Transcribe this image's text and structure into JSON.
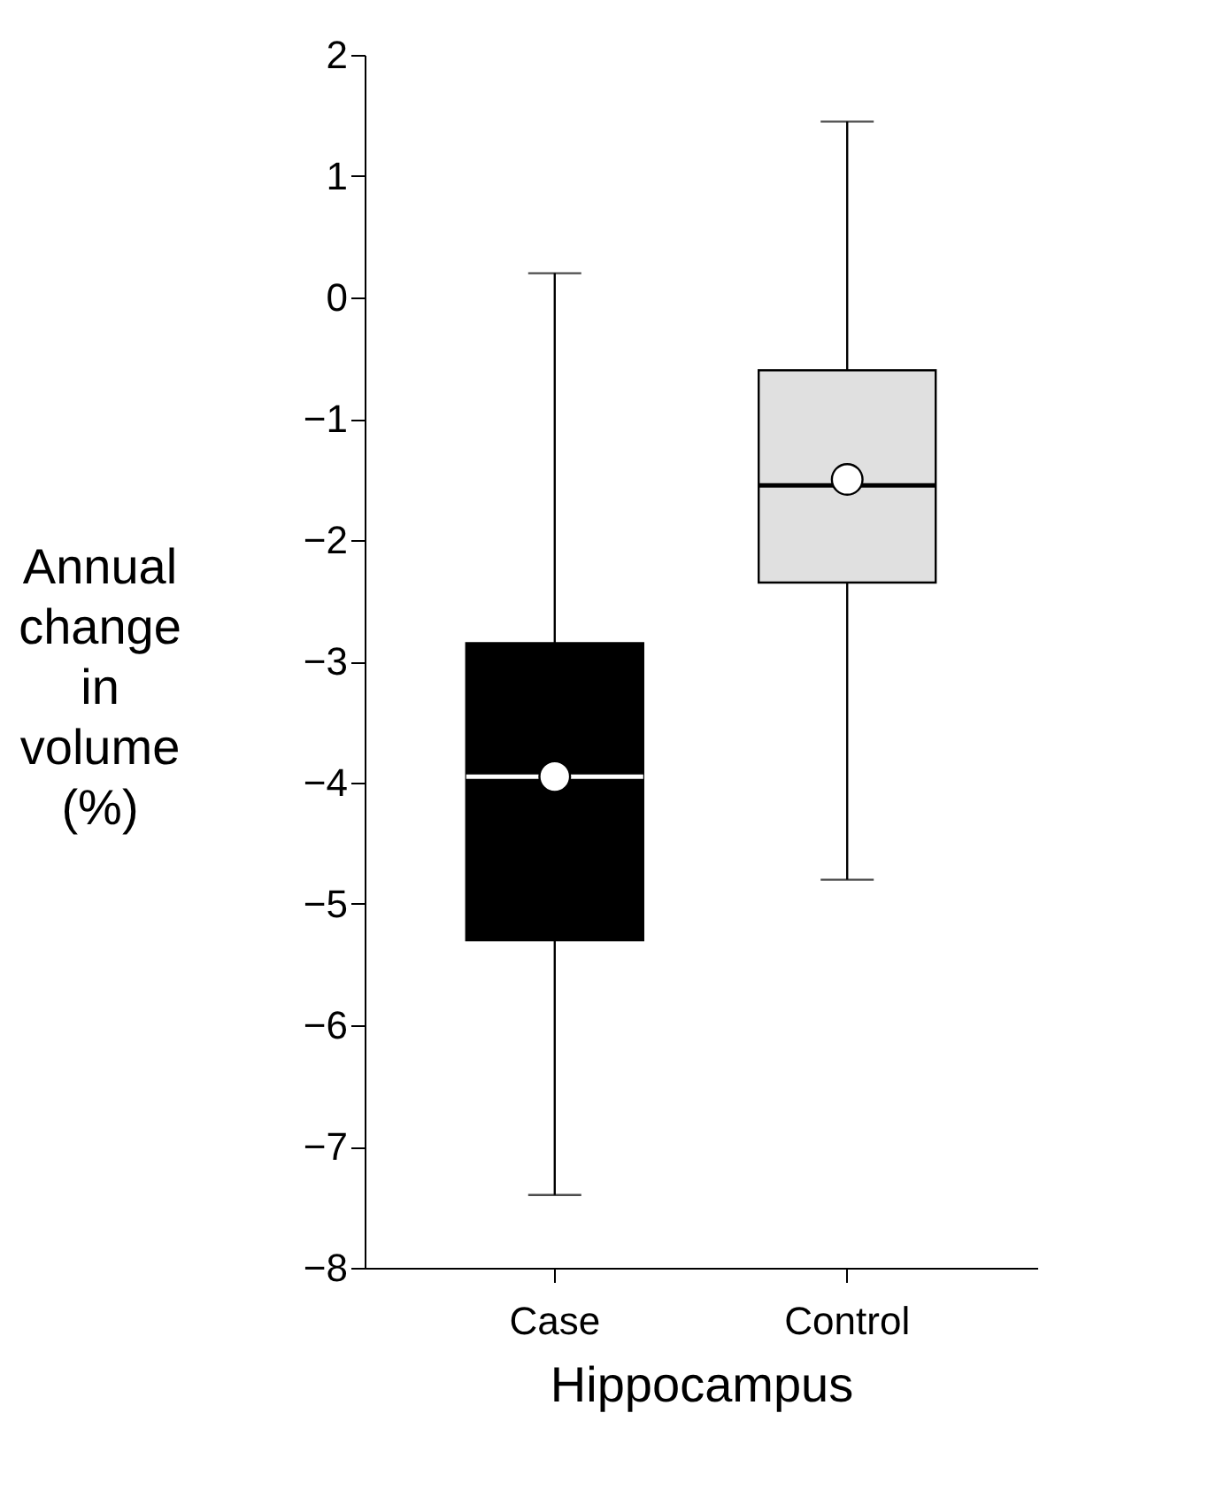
{
  "chart_data": {
    "type": "box",
    "xlabel": "Hippocampus",
    "ylabel": "Annual change in volume (%)",
    "categories": [
      "Case",
      "Control"
    ],
    "boxes": [
      {
        "low": -7.4,
        "q1": -5.3,
        "median": -3.95,
        "q3": -2.85,
        "high": 0.2,
        "mean": -3.95
      },
      {
        "low": -4.8,
        "q1": -2.35,
        "median": -1.55,
        "q3": -0.6,
        "high": 1.45,
        "mean": -1.5
      }
    ],
    "colors": [
      "#000000",
      "#e0e0e0"
    ],
    "ylim": [
      -8,
      2
    ],
    "yticks": [
      -8,
      -7,
      -6,
      -5,
      -4,
      -3,
      -2,
      -1,
      0,
      1,
      2
    ],
    "grid": false,
    "marker": "circle"
  }
}
